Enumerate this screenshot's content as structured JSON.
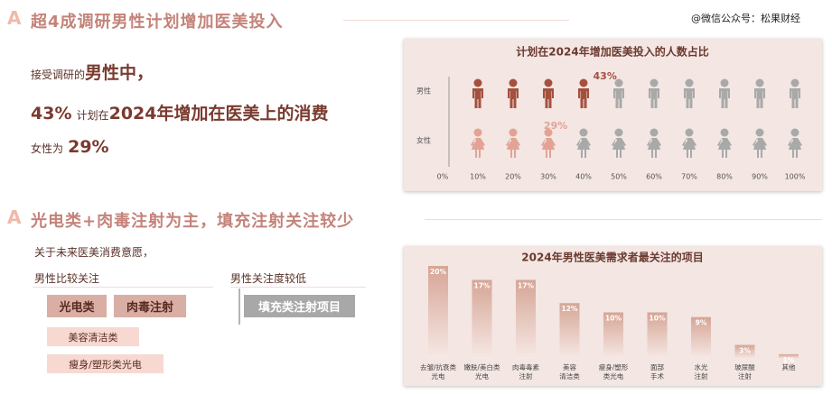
{
  "watermark": "@微信公众号：松果财经",
  "section1": {
    "title": "超4成调研男性计划增加医美投入",
    "line1": [
      "接受调研的",
      "男性中，"
    ],
    "line2": [
      "43%",
      "计划在",
      "2024年增加在医美上的消费"
    ],
    "line3": [
      "女性为",
      "29%"
    ]
  },
  "section2": {
    "title": "光电类+肉毒注射为主，填充注射关注较少",
    "intro": "关于未来医美消费意愿，",
    "high_label": "男性比较关注",
    "low_label": "男性关注度较低",
    "high_tags": [
      "光电类",
      "肉毒注射"
    ],
    "mid_tags": [
      "美容清洁类",
      "瘦身/塑形类光电"
    ],
    "low_tags": [
      "填充类注射项目"
    ]
  },
  "chart_data": [
    {
      "type": "pictogram",
      "title": "计划在2024年增加医美投入的人数占比",
      "categories": [
        "男性",
        "女性"
      ],
      "values": [
        43,
        29
      ],
      "value_labels": [
        "43%",
        "29%"
      ],
      "colors": [
        "#a5503f",
        "#e3a394"
      ],
      "empty_color": "#a9a9a9",
      "xlim": [
        0,
        100
      ],
      "xticks": [
        {
          "value": 0,
          "label": "0%"
        },
        {
          "value": 10,
          "label": "10%"
        },
        {
          "value": 20,
          "label": "20%"
        },
        {
          "value": 30,
          "label": "30%"
        },
        {
          "value": 40,
          "label": "40%"
        },
        {
          "value": 50,
          "label": "50%"
        },
        {
          "value": 60,
          "label": "60%"
        },
        {
          "value": 70,
          "label": "70%"
        },
        {
          "value": 80,
          "label": "80%"
        },
        {
          "value": 90,
          "label": "90%"
        },
        {
          "value": 100,
          "label": "100%"
        }
      ]
    },
    {
      "type": "bar",
      "title": "2024年男性医美需求者最关注的项目",
      "categories": [
        [
          "去皱/抗衰类",
          "光电"
        ],
        [
          "嫩肤/美白类",
          "光电"
        ],
        [
          "肉毒毒素",
          "注射"
        ],
        [
          "美容",
          "清洁类"
        ],
        [
          "瘦身/塑形",
          "类光电"
        ],
        [
          "面部",
          "手术"
        ],
        [
          "水光",
          "注射"
        ],
        [
          "玻尿酸",
          "注射"
        ],
        [
          "其他"
        ]
      ],
      "values": [
        20,
        17,
        17,
        12,
        10,
        10,
        9,
        3,
        1
      ],
      "value_labels": [
        "20%",
        "17%",
        "17%",
        "12%",
        "10%",
        "10%",
        "9%",
        "3%",
        "1%"
      ],
      "color": "#d6a595",
      "ylim": [
        0,
        20
      ]
    }
  ]
}
